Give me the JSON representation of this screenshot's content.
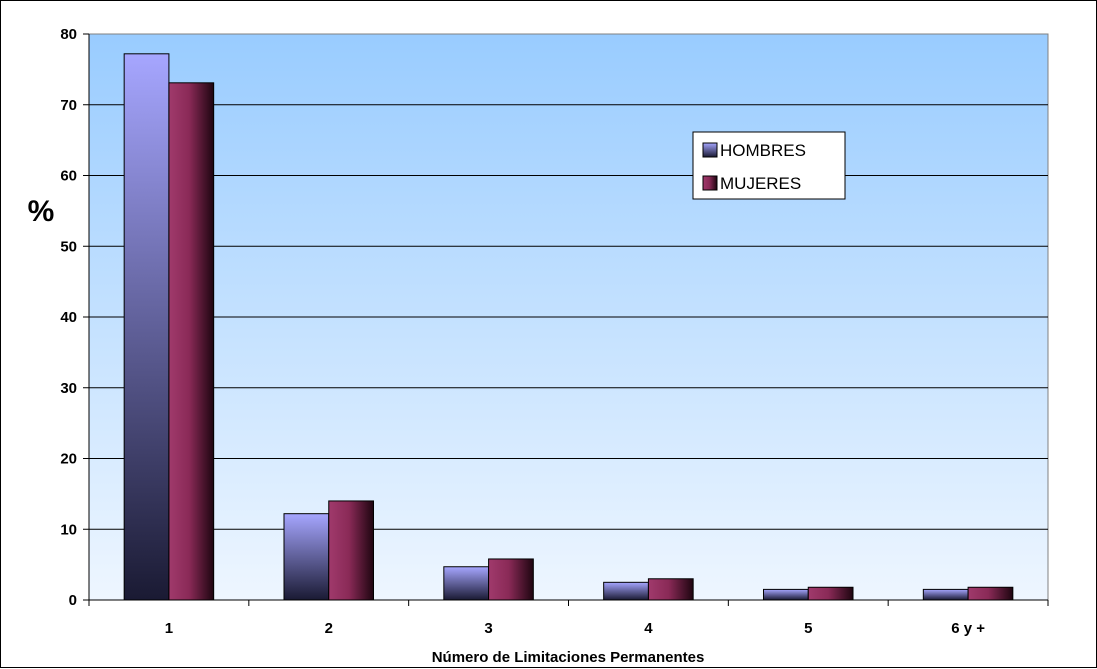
{
  "chart_data": {
    "type": "bar",
    "title": "",
    "xlabel": "Número de Limitaciones Permanentes",
    "ylabel": "%",
    "ylim": [
      0,
      80
    ],
    "yticks": [
      0,
      10,
      20,
      30,
      40,
      50,
      60,
      70,
      80
    ],
    "grid": true,
    "legend_position": "top-right",
    "categories": [
      "1",
      "2",
      "3",
      "4",
      "5",
      "6 y +"
    ],
    "series": [
      {
        "name": "HOMBRES",
        "values": [
          77.2,
          12.2,
          4.7,
          2.5,
          1.5,
          1.5
        ],
        "color": "#9999ff"
      },
      {
        "name": "MUJERES",
        "values": [
          73.1,
          14.0,
          5.8,
          3.0,
          1.8,
          1.8
        ],
        "color": "#993366"
      }
    ],
    "colors": {
      "plot_background_top": "#99ccff",
      "plot_background_bottom": "#eef6ff"
    }
  }
}
